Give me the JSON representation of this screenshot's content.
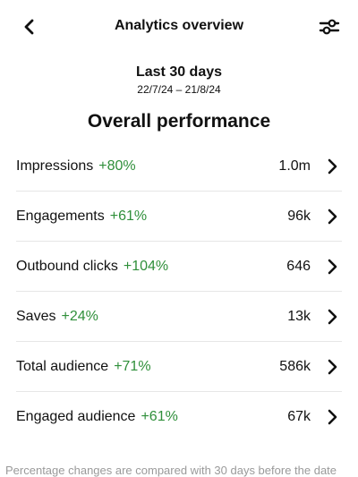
{
  "header": {
    "title": "Analytics overview"
  },
  "period": {
    "label": "Last 30 days",
    "dates": "22/7/24 – 21/8/24"
  },
  "section": {
    "title": "Overall performance"
  },
  "metrics": [
    {
      "label": "Impressions",
      "change": "+80%",
      "value": "1.0m"
    },
    {
      "label": "Engagements",
      "change": "+61%",
      "value": "96k"
    },
    {
      "label": "Outbound clicks",
      "change": "+104%",
      "value": "646"
    },
    {
      "label": "Saves",
      "change": "+24%",
      "value": "13k"
    },
    {
      "label": "Total audience",
      "change": "+71%",
      "value": "586k"
    },
    {
      "label": "Engaged audience",
      "change": "+61%",
      "value": "67k"
    }
  ],
  "footer": {
    "note": "Percentage changes are compared with 30 days before the date"
  }
}
